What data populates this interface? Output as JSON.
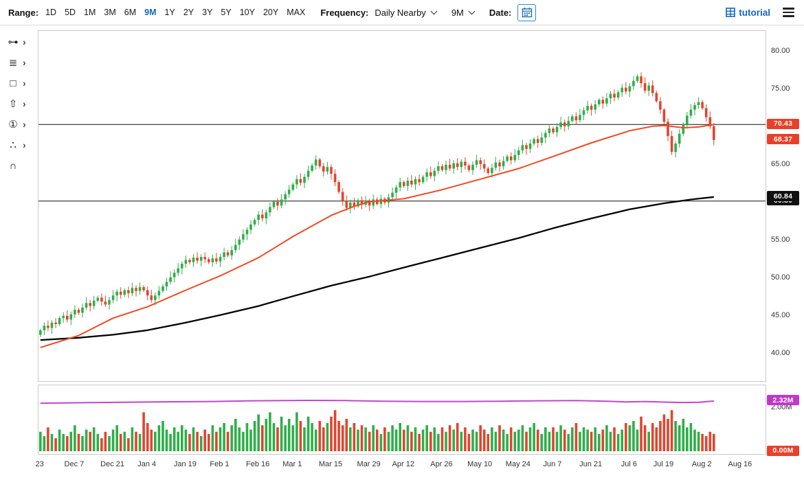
{
  "toolbar": {
    "range_label": "Range:",
    "range_options": [
      "1D",
      "5D",
      "1M",
      "3M",
      "6M",
      "9M",
      "1Y",
      "2Y",
      "3Y",
      "5Y",
      "10Y",
      "20Y",
      "MAX"
    ],
    "range_selected": "9M",
    "frequency_label": "Frequency:",
    "frequency_value": "Daily Nearby",
    "period_selector_value": "9M",
    "date_label": "Date:",
    "tutorial_label": "tutorial",
    "accent_color": "#1565C0"
  },
  "icons": {
    "chevron_right": "›"
  },
  "tools": [
    {
      "name": "line-study-tool",
      "glyph": "⊶",
      "has_submenu": true
    },
    {
      "name": "indicator-list-tool",
      "glyph": "≣",
      "has_submenu": true
    },
    {
      "name": "shape-tool",
      "glyph": "□",
      "has_submenu": true
    },
    {
      "name": "arrow-tool",
      "glyph": "⇧",
      "has_submenu": true
    },
    {
      "name": "number-annotation-tool",
      "glyph": "①",
      "has_submenu": true
    },
    {
      "name": "point-study-tool",
      "glyph": "∴",
      "has_submenu": true
    },
    {
      "name": "magnet-tool",
      "glyph": "∩",
      "has_submenu": false
    }
  ],
  "overlays": {
    "price_badges": [
      {
        "text": "70.43",
        "bg": "#E8402A",
        "price": 70.43,
        "partial": false
      },
      {
        "text": "68.37",
        "bg": "#E8402A",
        "price": 68.37,
        "partial": false
      },
      {
        "text": "60.84",
        "bg": "#111111",
        "price": 60.84,
        "partial": false
      },
      {
        "text": "60.30",
        "bg": "#111111",
        "price": 60.3,
        "partial": true
      }
    ],
    "volume_badges": [
      {
        "text": "2.32M",
        "bg": "#C238CB",
        "value": 2.32
      },
      {
        "text": "0.00M",
        "bg": "#E8402A",
        "value": 0.0
      }
    ]
  },
  "chart_data": {
    "type": "candlestick",
    "title": "",
    "frequency": "Daily Nearby",
    "visible_price_range": [
      40,
      80
    ],
    "up_color": "#2EAE49",
    "down_color": "#E1442E",
    "y_ticks": [
      {
        "text": "80.00",
        "value": 80
      },
      {
        "text": "75.00",
        "value": 75
      },
      {
        "text": "70.00",
        "value": 70
      },
      {
        "text": "65.00",
        "value": 65
      },
      {
        "text": "60.00",
        "value": 60
      },
      {
        "text": "55.00",
        "value": 55
      },
      {
        "text": "50.00",
        "value": 50
      },
      {
        "text": "45.00",
        "value": 45
      },
      {
        "text": "40.00",
        "value": 40
      }
    ],
    "x_ticks": [
      {
        "label": "23",
        "i": 0
      },
      {
        "label": "Dec 7",
        "i": 9
      },
      {
        "label": "Dec 21",
        "i": 19
      },
      {
        "label": "Jan 4",
        "i": 28
      },
      {
        "label": "Jan 19",
        "i": 38
      },
      {
        "label": "Feb 1",
        "i": 47
      },
      {
        "label": "Feb 16",
        "i": 57
      },
      {
        "label": "Mar 1",
        "i": 66
      },
      {
        "label": "Mar 15",
        "i": 76
      },
      {
        "label": "Mar 29",
        "i": 86
      },
      {
        "label": "Apr 12",
        "i": 95
      },
      {
        "label": "Apr 26",
        "i": 105
      },
      {
        "label": "May 10",
        "i": 115
      },
      {
        "label": "May 24",
        "i": 125
      },
      {
        "label": "Jun 7",
        "i": 134
      },
      {
        "label": "Jun 21",
        "i": 144
      },
      {
        "label": "Jul 6",
        "i": 154
      },
      {
        "label": "Jul 19",
        "i": 163
      },
      {
        "label": "Aug 2",
        "i": 173
      },
      {
        "label": "Aug 16",
        "i": 183
      }
    ],
    "closes": [
      43.2,
      43.8,
      43.5,
      44.2,
      44.0,
      44.8,
      45.1,
      44.6,
      45.3,
      45.9,
      45.5,
      46.2,
      46.8,
      46.4,
      47.1,
      47.5,
      47.0,
      46.6,
      47.2,
      47.8,
      48.3,
      47.9,
      48.5,
      48.1,
      48.8,
      48.4,
      48.9,
      48.5,
      47.8,
      47.2,
      47.8,
      48.4,
      49.0,
      49.6,
      50.2,
      50.8,
      51.4,
      52.0,
      52.5,
      52.2,
      52.8,
      52.4,
      52.9,
      52.6,
      52.2,
      52.7,
      52.3,
      52.9,
      53.5,
      53.1,
      53.8,
      54.5,
      55.2,
      55.9,
      56.5,
      57.2,
      57.8,
      58.5,
      58.0,
      58.8,
      59.5,
      60.2,
      59.7,
      60.5,
      61.2,
      61.8,
      62.5,
      63.2,
      62.7,
      63.5,
      64.3,
      65.0,
      65.8,
      64.9,
      64.2,
      64.8,
      63.9,
      62.8,
      61.5,
      60.3,
      59.4,
      60.1,
      59.6,
      60.4,
      59.8,
      60.2,
      59.7,
      60.5,
      59.9,
      60.6,
      60.1,
      60.8,
      61.4,
      62.1,
      62.8,
      62.3,
      63.0,
      62.5,
      63.2,
      62.8,
      63.5,
      64.1,
      63.6,
      64.3,
      64.9,
      64.4,
      65.1,
      64.6,
      65.3,
      64.8,
      65.5,
      65.0,
      64.4,
      65.1,
      65.7,
      65.2,
      64.6,
      64.0,
      64.7,
      65.4,
      64.9,
      65.6,
      66.2,
      65.7,
      66.4,
      67.0,
      67.7,
      67.2,
      67.9,
      68.5,
      68.0,
      68.7,
      69.3,
      69.9,
      69.4,
      70.1,
      70.7,
      70.2,
      70.9,
      71.5,
      71.0,
      71.7,
      72.3,
      72.9,
      72.4,
      73.1,
      73.7,
      73.2,
      73.9,
      74.5,
      74.0,
      74.7,
      75.3,
      74.8,
      75.5,
      76.2,
      76.8,
      75.9,
      74.9,
      75.6,
      74.6,
      73.5,
      72.4,
      70.8,
      68.9,
      66.8,
      67.9,
      69.2,
      70.5,
      71.6,
      72.4,
      73.0,
      73.4,
      72.6,
      71.4,
      70.2,
      68.37
    ],
    "last_price": 68.37,
    "volumes_m": [
      0.9,
      0.7,
      1.1,
      0.8,
      0.6,
      1.0,
      0.8,
      0.7,
      0.9,
      1.2,
      0.8,
      0.7,
      1.0,
      0.9,
      1.1,
      0.8,
      0.6,
      0.9,
      0.7,
      1.0,
      1.2,
      0.8,
      0.9,
      0.6,
      1.1,
      0.9,
      0.8,
      1.8,
      1.3,
      1.0,
      0.9,
      1.2,
      1.4,
      1.0,
      0.8,
      1.1,
      0.9,
      1.2,
      1.0,
      0.8,
      1.1,
      0.9,
      0.7,
      1.0,
      0.8,
      1.2,
      0.9,
      1.1,
      1.3,
      0.9,
      1.2,
      1.5,
      1.1,
      0.9,
      1.3,
      1.0,
      1.4,
      1.7,
      1.2,
      1.5,
      1.8,
      1.3,
      1.1,
      1.6,
      1.2,
      1.5,
      1.2,
      1.8,
      1.4,
      1.1,
      1.6,
      1.3,
      1.0,
      1.4,
      1.1,
      1.3,
      1.6,
      1.9,
      1.4,
      1.2,
      1.5,
      1.1,
      1.3,
      1.0,
      1.2,
      1.1,
      0.9,
      1.2,
      1.0,
      0.8,
      1.1,
      0.9,
      1.2,
      1.0,
      1.3,
      1.0,
      1.2,
      0.9,
      1.1,
      0.8,
      1.0,
      1.2,
      0.9,
      1.1,
      0.8,
      1.1,
      0.9,
      1.2,
      1.0,
      1.3,
      0.9,
      1.1,
      0.8,
      1.0,
      0.9,
      1.2,
      1.0,
      0.8,
      1.1,
      0.9,
      1.2,
      1.0,
      0.8,
      1.1,
      0.9,
      1.0,
      1.2,
      0.9,
      1.1,
      1.3,
      1.0,
      0.8,
      1.1,
      0.9,
      1.1,
      0.9,
      1.2,
      1.0,
      0.8,
      1.1,
      1.3,
      0.9,
      1.1,
      1.0,
      0.9,
      1.1,
      0.8,
      1.0,
      1.2,
      0.9,
      1.1,
      0.8,
      1.0,
      1.3,
      1.2,
      1.4,
      1.0,
      1.6,
      1.2,
      0.9,
      1.3,
      1.1,
      1.4,
      1.7,
      1.5,
      1.9,
      1.4,
      1.2,
      1.5,
      1.1,
      1.3,
      1.0,
      0.9,
      0.8,
      0.7,
      0.9,
      0.8
    ],
    "ma_fast": {
      "name": "moving-average-fast",
      "color": "#EF4923",
      "end_value": 70.43,
      "points": [
        [
          0,
          40.9
        ],
        [
          10,
          42.5
        ],
        [
          19,
          44.8
        ],
        [
          28,
          46.3
        ],
        [
          38,
          48.5
        ],
        [
          47,
          50.4
        ],
        [
          57,
          52.8
        ],
        [
          66,
          55.6
        ],
        [
          76,
          58.4
        ],
        [
          82,
          59.6
        ],
        [
          86,
          60.2
        ],
        [
          95,
          60.6
        ],
        [
          105,
          61.8
        ],
        [
          115,
          63.2
        ],
        [
          125,
          64.6
        ],
        [
          134,
          66.2
        ],
        [
          144,
          68.0
        ],
        [
          154,
          69.6
        ],
        [
          160,
          70.2
        ],
        [
          163,
          70.3
        ],
        [
          168,
          70.0
        ],
        [
          172,
          70.1
        ],
        [
          176,
          70.43
        ]
      ]
    },
    "ma_slow": {
      "name": "moving-average-slow",
      "color": "#000000",
      "end_value": 60.84,
      "points": [
        [
          0,
          41.9
        ],
        [
          10,
          42.2
        ],
        [
          19,
          42.6
        ],
        [
          28,
          43.2
        ],
        [
          38,
          44.2
        ],
        [
          47,
          45.2
        ],
        [
          57,
          46.4
        ],
        [
          66,
          47.7
        ],
        [
          76,
          49.1
        ],
        [
          86,
          50.3
        ],
        [
          95,
          51.5
        ],
        [
          105,
          52.8
        ],
        [
          115,
          54.1
        ],
        [
          125,
          55.4
        ],
        [
          134,
          56.7
        ],
        [
          144,
          58.0
        ],
        [
          154,
          59.2
        ],
        [
          163,
          60.0
        ],
        [
          170,
          60.5
        ],
        [
          176,
          60.84
        ]
      ]
    },
    "open_interest": {
      "name": "open-interest-line",
      "color": "#C344CE",
      "end_value": 2.32,
      "points": [
        [
          0,
          2.22
        ],
        [
          15,
          2.25
        ],
        [
          30,
          2.28
        ],
        [
          45,
          2.3
        ],
        [
          55,
          2.33
        ],
        [
          70,
          2.35
        ],
        [
          80,
          2.34
        ],
        [
          90,
          2.31
        ],
        [
          100,
          2.3
        ],
        [
          110,
          2.3
        ],
        [
          120,
          2.31
        ],
        [
          130,
          2.33
        ],
        [
          140,
          2.34
        ],
        [
          148,
          2.31
        ],
        [
          153,
          2.28
        ],
        [
          158,
          2.3
        ],
        [
          163,
          2.27
        ],
        [
          168,
          2.25
        ],
        [
          172,
          2.26
        ],
        [
          176,
          2.32
        ]
      ]
    },
    "hlines": [
      {
        "price": 70.43
      },
      {
        "price": 60.3
      }
    ],
    "volume_axis": {
      "ticks": [
        {
          "text": "2.00M",
          "value": 2.0
        }
      ]
    }
  }
}
